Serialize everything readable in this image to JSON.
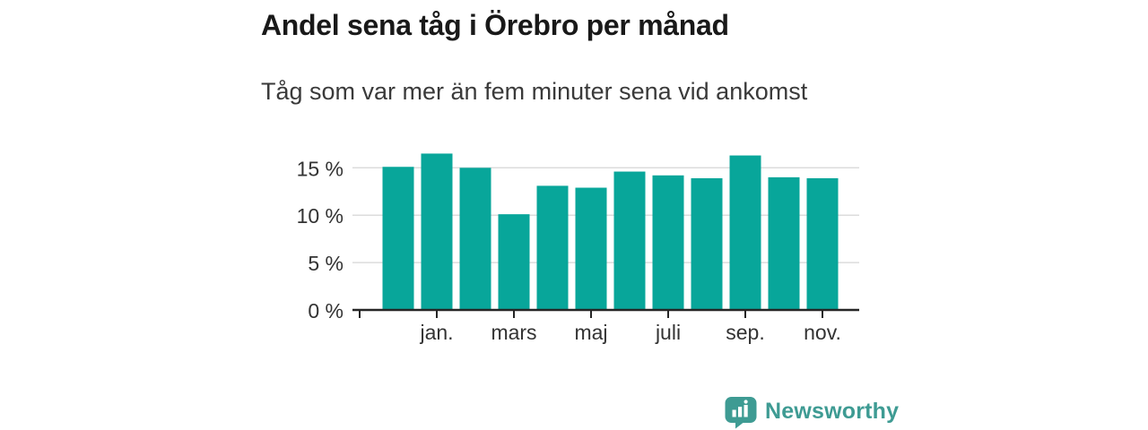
{
  "header": {
    "title": "Andel sena tåg i Örebro per månad",
    "subtitle": "Tåg som var mer än fem minuter sena vid ankomst"
  },
  "chart_data": {
    "type": "bar",
    "title": "Andel sena tåg i Örebro per månad",
    "subtitle": "Tåg som var mer än fem minuter sena vid ankomst",
    "n_bars": 12,
    "values": [
      15.1,
      16.5,
      15.0,
      10.1,
      13.1,
      12.9,
      14.6,
      14.2,
      13.9,
      16.3,
      14.0,
      13.9
    ],
    "x_tick_labels": [
      "jan.",
      "mars",
      "maj",
      "juli",
      "sep.",
      "nov."
    ],
    "x_tick_bar_indices": [
      1,
      3,
      5,
      7,
      9,
      11
    ],
    "y_tick_labels": [
      "0 %",
      "5 %",
      "10 %",
      "15 %"
    ],
    "y_tick_values": [
      0,
      5,
      10,
      15
    ],
    "ylim": [
      0,
      17.5
    ],
    "grid": "horizontal",
    "legend": "none",
    "bar_color": "#08A69A",
    "axis_color": "#262626",
    "gridline_color": "#dcdcdc",
    "tick_label_color": "#333333"
  },
  "footer": {
    "brand": "Newsworthy",
    "brand_color": "#3E9B93",
    "logo_icon": "bar-chart-speech-bubble-icon"
  }
}
